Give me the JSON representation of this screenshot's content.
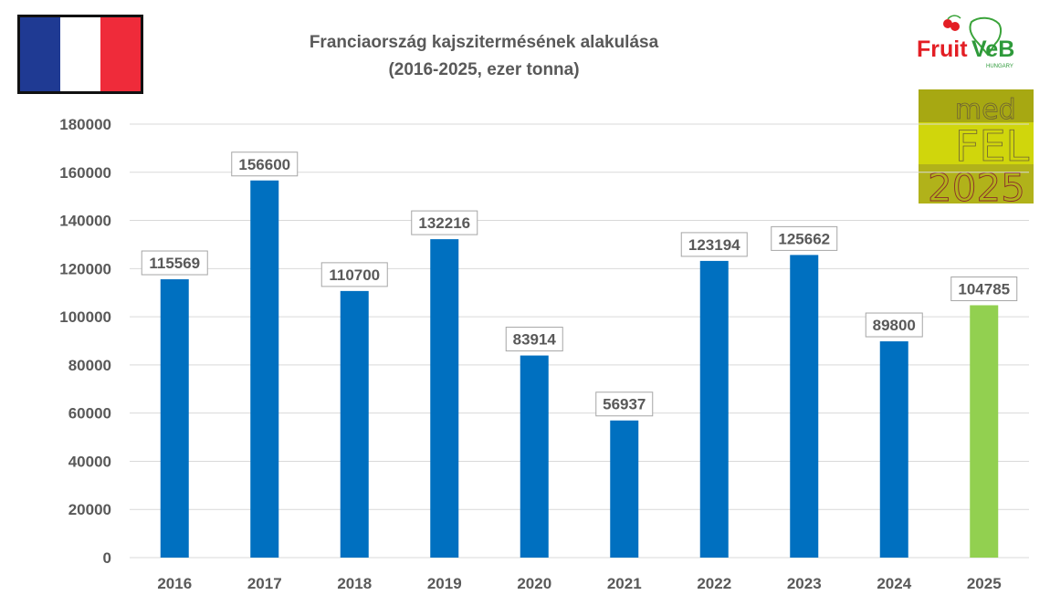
{
  "title_line1": "Franciaország kajszitermésének alakulása",
  "title_line2": "(2016-2025, ezer tonna)",
  "flag": {
    "colors": [
      "#1f3a93",
      "#ffffff",
      "#ef2b3a"
    ]
  },
  "logos": {
    "fruitveb": {
      "text_main": "FruitVeB",
      "text_sub": "HUNGARY"
    },
    "medfel": {
      "line1": "med",
      "line2": "FEL",
      "line3": "2025"
    }
  },
  "chart_data": {
    "type": "bar",
    "categories": [
      "2016",
      "2017",
      "2018",
      "2019",
      "2020",
      "2021",
      "2022",
      "2023",
      "2024",
      "2025"
    ],
    "values": [
      115569,
      156600,
      110700,
      132216,
      83914,
      56937,
      123194,
      125662,
      89800,
      104785
    ],
    "data_labels": [
      "115569",
      "156600",
      "110700",
      "132216",
      "83914",
      "56937",
      "123194",
      "125662",
      "89800",
      "104785"
    ],
    "ylim": [
      0,
      180000
    ],
    "yticks": [
      "0",
      "20000",
      "40000",
      "60000",
      "80000",
      "100000",
      "120000",
      "140000",
      "160000",
      "180000"
    ],
    "bar_colors": [
      "#0070c0",
      "#0070c0",
      "#0070c0",
      "#0070c0",
      "#0070c0",
      "#0070c0",
      "#0070c0",
      "#0070c0",
      "#0070c0",
      "#92d050"
    ],
    "grid": true,
    "gridline_color": "#d9d9d9"
  }
}
